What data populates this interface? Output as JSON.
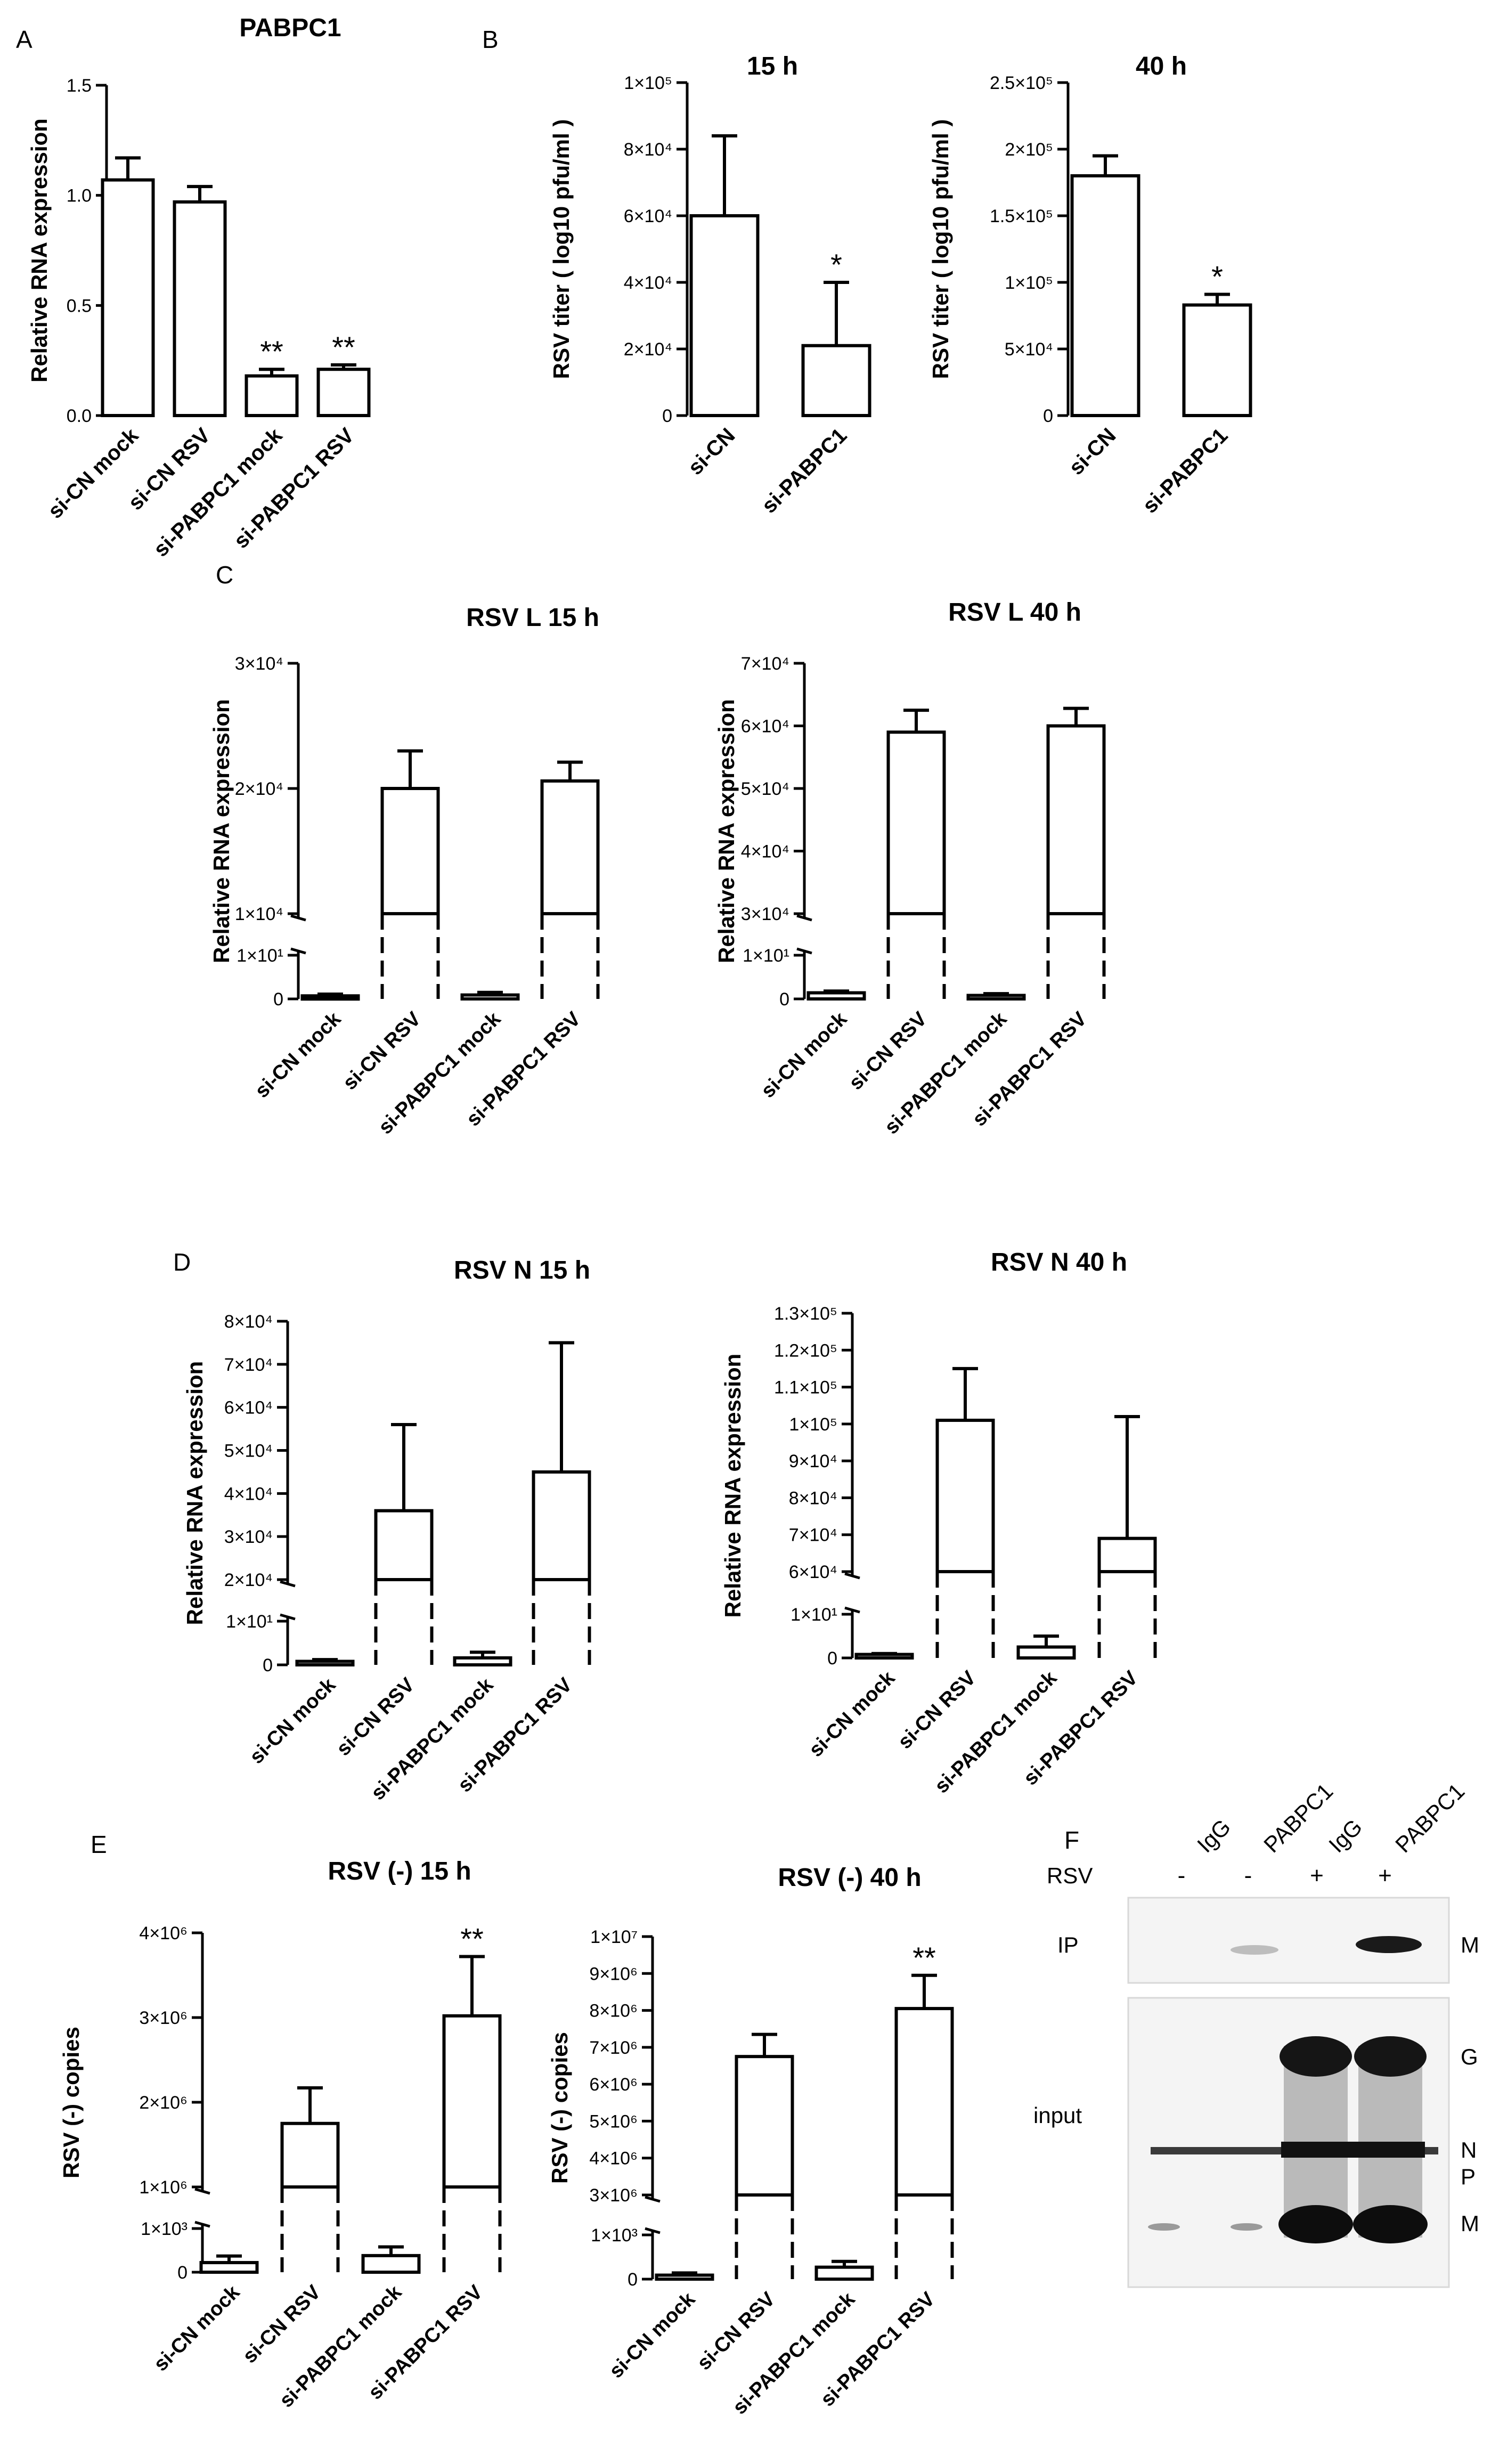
{
  "chart_data": [
    {
      "id": "A",
      "panel_label": "A",
      "type": "bar",
      "title": "PABPC1",
      "ylabel": "Relative RNA expression",
      "categories": [
        "si-CN mock",
        "si-CN RSV",
        "si-PABPC1 mock",
        "si-PABPC1 RSV"
      ],
      "values": [
        1.07,
        0.97,
        0.18,
        0.21
      ],
      "errors": [
        0.1,
        0.07,
        0.03,
        0.02
      ],
      "annotations": [
        "",
        "",
        "**",
        "**"
      ],
      "ylim": [
        0,
        1.5
      ],
      "ticks": [
        "0.0",
        "0.5",
        "1.0",
        "1.5"
      ]
    },
    {
      "id": "B1",
      "panel_label": "B",
      "type": "bar",
      "title": "15 h",
      "ylabel": "RSV titer ( log10 pfu/ml )",
      "categories": [
        "si-CN",
        "si-PABPC1"
      ],
      "values": [
        60000,
        21000
      ],
      "errors": [
        24000,
        19000
      ],
      "annotations": [
        "",
        "*"
      ],
      "ylim": [
        0,
        100000
      ],
      "ticks": [
        "0",
        "2×10⁴",
        "4×10⁴",
        "6×10⁴",
        "8×10⁴",
        "1×10⁵"
      ]
    },
    {
      "id": "B2",
      "panel_label": "",
      "type": "bar",
      "title": "40 h",
      "ylabel": "RSV titer ( log10 pfu/ml )",
      "categories": [
        "si-CN",
        "si-PABPC1"
      ],
      "values": [
        180000,
        83000
      ],
      "errors": [
        15000,
        8000
      ],
      "annotations": [
        "",
        "*"
      ],
      "ylim": [
        0,
        250000
      ],
      "ticks": [
        "0",
        "5×10⁴",
        "1×10⁵",
        "1.5×10⁵",
        "2×10⁵",
        "2.5×10⁵"
      ]
    },
    {
      "id": "C1",
      "panel_label": "C",
      "type": "bar",
      "title": "RSV L  15 h",
      "ylabel": "Relative RNA expression",
      "categories": [
        "si-CN mock",
        "si-CN RSV",
        "si-PABPC1 mock",
        "si-PABPC1 RSV"
      ],
      "values": [
        0.7,
        20000,
        0.9,
        20600
      ],
      "errors": [
        0.4,
        3000,
        0.6,
        1500
      ],
      "annotations": [
        "",
        "",
        "",
        ""
      ],
      "lower": {
        "range": [
          0,
          10
        ],
        "ticks": [
          "0",
          "1×10¹"
        ]
      },
      "upper": {
        "range": [
          10000,
          30000
        ],
        "ticks": [
          "1×10⁴",
          "2×10⁴",
          "3×10⁴"
        ]
      }
    },
    {
      "id": "C2",
      "panel_label": "",
      "type": "bar",
      "title": "RSV L 40 h",
      "ylabel": "Relative RNA expression",
      "categories": [
        "si-CN mock",
        "si-CN RSV",
        "si-PABPC1 mock",
        "si-PABPC1 RSV"
      ],
      "values": [
        1.4,
        59000,
        0.8,
        60000
      ],
      "errors": [
        0.4,
        3500,
        0.4,
        2800
      ],
      "annotations": [
        "",
        "",
        "",
        ""
      ],
      "lower": {
        "range": [
          0,
          10
        ],
        "ticks": [
          "0",
          "1×10¹"
        ]
      },
      "upper": {
        "range": [
          30000,
          70000
        ],
        "ticks": [
          "3×10⁴",
          "4×10⁴",
          "5×10⁴",
          "6×10⁴",
          "7×10⁴"
        ]
      }
    },
    {
      "id": "D1",
      "panel_label": "D",
      "type": "bar",
      "title": "RSV N  15 h",
      "ylabel": "Relative RNA expression",
      "categories": [
        "si-CN mock",
        "si-CN RSV",
        "si-PABPC1 mock",
        "si-PABPC1 RSV"
      ],
      "values": [
        0.8,
        36000,
        1.6,
        45000
      ],
      "errors": [
        0.4,
        20000,
        1.3,
        30000
      ],
      "annotations": [
        "",
        "",
        "",
        ""
      ],
      "lower": {
        "range": [
          0,
          10
        ],
        "ticks": [
          "0",
          "1×10¹"
        ]
      },
      "upper": {
        "range": [
          20000,
          80000
        ],
        "ticks": [
          "2×10⁴",
          "3×10⁴",
          "4×10⁴",
          "5×10⁴",
          "6×10⁴",
          "7×10⁴",
          "8×10⁴"
        ]
      }
    },
    {
      "id": "D2",
      "panel_label": "",
      "type": "bar",
      "title": "RSV N 40 h",
      "ylabel": "Relative RNA expression",
      "categories": [
        "si-CN mock",
        "si-CN RSV",
        "si-PABPC1 mock",
        "si-PABPC1 RSV"
      ],
      "values": [
        0.8,
        101000,
        2.5,
        69000
      ],
      "errors": [
        0.2,
        14000,
        2.5,
        33000
      ],
      "annotations": [
        "",
        "",
        "",
        ""
      ],
      "lower": {
        "range": [
          0,
          10
        ],
        "ticks": [
          "0",
          "1×10¹"
        ]
      },
      "upper": {
        "range": [
          60000,
          130000
        ],
        "ticks": [
          "6×10⁴",
          "7×10⁴",
          "8×10⁴",
          "9×10⁴",
          "1×10⁵",
          "1.1×10⁵",
          "1.2×10⁵",
          "1.3×10⁵"
        ]
      }
    },
    {
      "id": "E1",
      "panel_label": "E",
      "type": "bar",
      "title": "RSV (-) 15 h",
      "ylabel": "RSV (-) copies",
      "categories": [
        "si-CN mock",
        "si-CN RSV",
        "si-PABPC1 mock",
        "si-PABPC1 RSV"
      ],
      "values": [
        220,
        1750000,
        380,
        3020000
      ],
      "errors": [
        150,
        420000,
        200,
        700000
      ],
      "annotations": [
        "",
        "",
        "",
        "**"
      ],
      "lower": {
        "range": [
          0,
          1000
        ],
        "ticks": [
          "0",
          "1×10³"
        ]
      },
      "upper": {
        "range": [
          1000000,
          4000000
        ],
        "ticks": [
          "1×10⁶",
          "2×10⁶",
          "3×10⁶",
          "4×10⁶"
        ]
      }
    },
    {
      "id": "E2",
      "panel_label": "",
      "type": "bar",
      "title": "RSV (-) 40 h",
      "ylabel": "RSV (-) copies",
      "categories": [
        "si-CN mock",
        "si-CN RSV",
        "si-PABPC1 mock",
        "si-PABPC1 RSV"
      ],
      "values": [
        90,
        6750000,
        270,
        8050000
      ],
      "errors": [
        50,
        600000,
        130,
        900000
      ],
      "annotations": [
        "",
        "",
        "",
        "**"
      ],
      "lower": {
        "range": [
          0,
          1000
        ],
        "ticks": [
          "0",
          "1×10³"
        ]
      },
      "upper": {
        "range": [
          3000000,
          10000000
        ],
        "ticks": [
          "3×10⁶",
          "4×10⁶",
          "5×10⁶",
          "6×10⁶",
          "7×10⁶",
          "8×10⁶",
          "9×10⁶",
          "1×10⁷"
        ]
      }
    }
  ],
  "blot": {
    "panel_label": "F",
    "lanes": [
      "IgG",
      "PABPC1",
      "IgG",
      "PABPC1"
    ],
    "rsv_label": "RSV",
    "rsv": [
      "-",
      "-",
      "+",
      "+"
    ],
    "ip_label": "IP",
    "input_label": "input",
    "ip_bands": [
      "M"
    ],
    "input_bands": [
      "G",
      "N",
      "P",
      "M"
    ],
    "background_color": "#f4f4f4",
    "band_color": "#111111"
  }
}
